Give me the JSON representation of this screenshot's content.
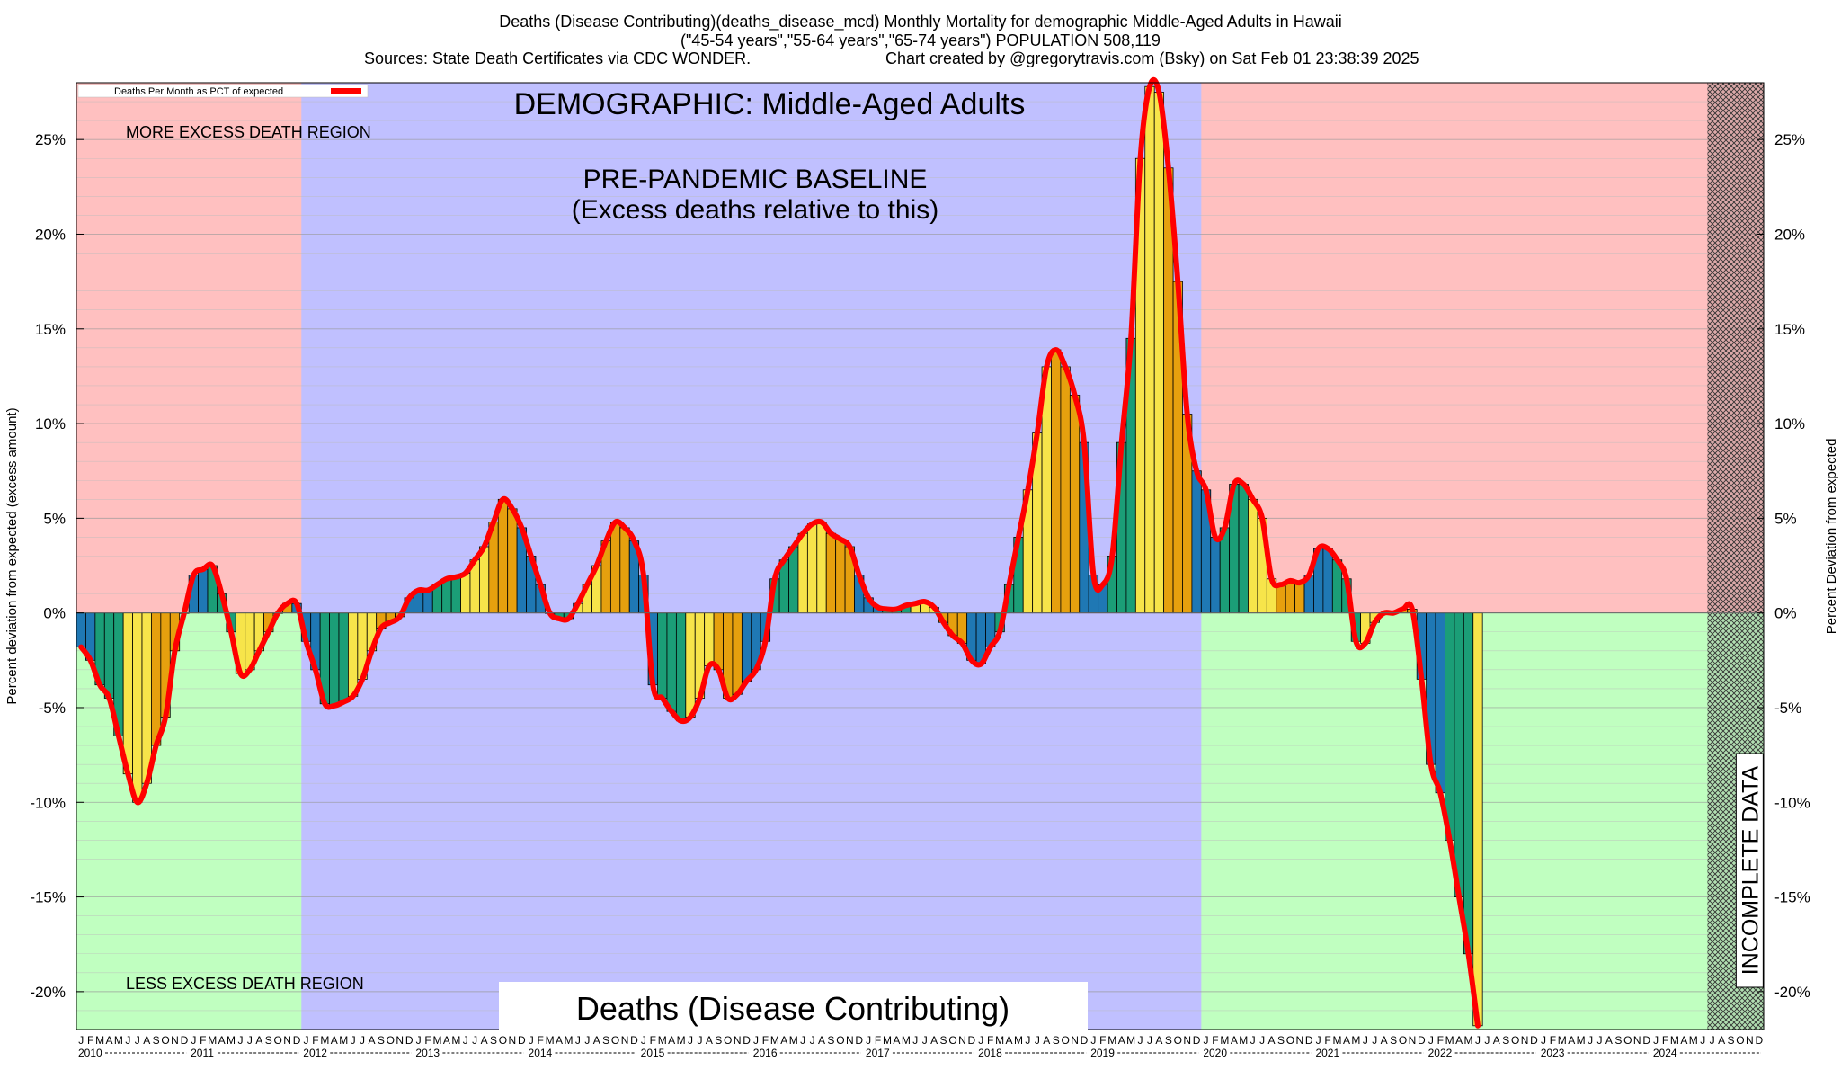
{
  "header": {
    "title_line1": "Deaths (Disease Contributing)(deaths_disease_mcd) Monthly Mortality for demographic Middle-Aged Adults in Hawaii",
    "title_line2": "(\"45-54 years\",\"55-64 years\",\"65-74 years\") POPULATION 508,119",
    "sources": "Sources: State Death Certificates via CDC WONDER.",
    "credit": "Chart created by @gregorytravis.com (Bsky) on Sat Feb 01 23:38:39 2025"
  },
  "annotations": {
    "demographic": "DEMOGRAPHIC: Middle-Aged Adults",
    "baseline_line1": "PRE-PANDEMIC BASELINE",
    "baseline_line2": "(Excess deaths relative to this)",
    "more_region": "MORE EXCESS DEATH REGION",
    "less_region": "LESS EXCESS DEATH REGION",
    "bottom_label": "Deaths (Disease Contributing)",
    "incomplete": "INCOMPLETE DATA"
  },
  "colors": {
    "more_region": "#ffc0c0",
    "less_region": "#c0ffc0",
    "baseline_region": "#c0c0ff",
    "line": "#ff0000",
    "bar_winter": "#1f78b4",
    "bar_spring": "#1b9e77",
    "bar_summer": "#f7e44a",
    "bar_fall": "#e6a00e"
  },
  "chart_data": {
    "type": "bar",
    "legend": {
      "label": "Deaths Per Month as PCT of expected",
      "placement": "top-left"
    },
    "ylabel_left": "Percent deviation from expected (excess amount)",
    "ylabel_right": "Percent Deviation from expected",
    "ylim": [
      -22,
      28
    ],
    "yticks": [
      25,
      20,
      15,
      10,
      5,
      0,
      -5,
      -10,
      -15,
      -20
    ],
    "ytick_labels": [
      "25%",
      "20%",
      "15%",
      "10%",
      "5%",
      "0%",
      "-5%",
      "-10%",
      "-15%",
      "-20%"
    ],
    "month_letters": [
      "J",
      "F",
      "M",
      "A",
      "M",
      "J",
      "J",
      "A",
      "S",
      "O",
      "N",
      "D"
    ],
    "years": [
      "2010",
      "2011",
      "2012",
      "2013",
      "2014",
      "2015",
      "2016",
      "2017",
      "2018",
      "2019",
      "2020",
      "2021",
      "2022",
      "2023",
      "2024"
    ],
    "start": "2010-01",
    "baseline_period": [
      "2012-01",
      "2019-12"
    ],
    "incomplete_from": "2024-07",
    "values": [
      -1.8,
      -2.5,
      -3.8,
      -4.5,
      -6.5,
      -8.5,
      -10.0,
      -9.0,
      -7.0,
      -5.5,
      -2.0,
      0.0,
      2.0,
      2.3,
      2.5,
      1.0,
      -1.0,
      -3.2,
      -3.0,
      -2.0,
      -1.0,
      0.0,
      0.5,
      0.5,
      -1.5,
      -3.0,
      -4.8,
      -4.9,
      -4.7,
      -4.4,
      -3.5,
      -2.0,
      -0.8,
      -0.5,
      -0.2,
      0.8,
      1.2,
      1.2,
      1.5,
      1.8,
      1.9,
      2.1,
      2.8,
      3.5,
      4.8,
      6.0,
      5.5,
      4.5,
      3.0,
      1.5,
      0.0,
      -0.3,
      -0.3,
      0.5,
      1.5,
      2.5,
      3.8,
      4.8,
      4.5,
      3.8,
      2.0,
      -3.8,
      -4.5,
      -5.2,
      -5.7,
      -5.5,
      -4.5,
      -2.8,
      -3.0,
      -4.5,
      -4.3,
      -3.6,
      -3.0,
      -1.5,
      1.8,
      2.8,
      3.5,
      4.2,
      4.7,
      4.8,
      4.2,
      3.9,
      3.5,
      2.0,
      0.8,
      0.3,
      0.2,
      0.2,
      0.4,
      0.5,
      0.6,
      0.3,
      -0.5,
      -1.2,
      -1.6,
      -2.5,
      -2.7,
      -1.8,
      -1.0,
      1.5,
      4.0,
      6.5,
      9.5,
      13.0,
      13.9,
      13.0,
      11.5,
      9.0,
      2.0,
      1.5,
      3.0,
      9.0,
      14.5,
      24.0,
      27.8,
      27.5,
      23.5,
      17.5,
      10.5,
      7.5,
      6.5,
      4.0,
      4.5,
      6.8,
      6.8,
      6.0,
      5.0,
      1.8,
      1.5,
      1.7,
      1.6,
      2.0,
      3.4,
      3.4,
      2.8,
      1.8,
      -1.5,
      -1.6,
      -0.5,
      0.0,
      0.0,
      0.2,
      0.2,
      -3.5,
      -8.0,
      -9.5,
      -12.0,
      -15.0,
      -18.0,
      -21.8
    ]
  }
}
